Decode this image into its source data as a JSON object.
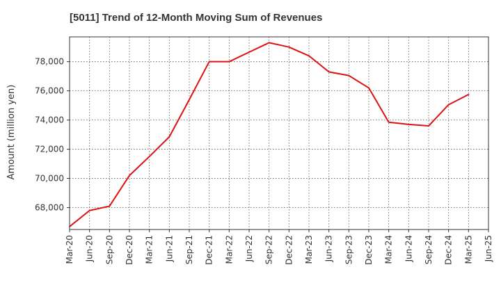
{
  "chart_data": {
    "type": "line",
    "title": "[5011]  Trend of 12-Month Moving Sum of Revenues",
    "xlabel": "",
    "ylabel": "Amount (million yen)",
    "x_ticks": [
      "Mar-20",
      "Jun-20",
      "Sep-20",
      "Dec-20",
      "Mar-21",
      "Jun-21",
      "Sep-21",
      "Dec-21",
      "Mar-22",
      "Jun-22",
      "Sep-22",
      "Dec-22",
      "Mar-23",
      "Jun-23",
      "Sep-23",
      "Dec-23",
      "Mar-24",
      "Jun-24",
      "Sep-24",
      "Dec-24",
      "Mar-25",
      "Jun-25"
    ],
    "y_ticks": [
      68000,
      70000,
      72000,
      74000,
      76000,
      78000
    ],
    "y_tick_labels": [
      "68,000",
      "70,000",
      "72,000",
      "74,000",
      "76,000",
      "78,000"
    ],
    "ylim": [
      66500,
      79700
    ],
    "grid": true,
    "series": [
      {
        "color": "#dd1111",
        "x": [
          "Mar-20",
          "Jun-20",
          "Sep-20",
          "Dec-20",
          "Mar-21",
          "Jun-21",
          "Sep-21",
          "Dec-21",
          "Mar-22",
          "Jun-22",
          "Sep-22",
          "Dec-22",
          "Mar-23",
          "Jun-23",
          "Sep-23",
          "Dec-23",
          "Mar-24",
          "Jun-24",
          "Sep-24",
          "Dec-24",
          "Mar-25"
        ],
        "values": [
          66700,
          67800,
          68100,
          70200,
          71500,
          72850,
          75400,
          78000,
          78000,
          78650,
          79300,
          79000,
          78400,
          77300,
          77050,
          76200,
          73850,
          73700,
          73600,
          75050,
          75750
        ]
      }
    ]
  }
}
